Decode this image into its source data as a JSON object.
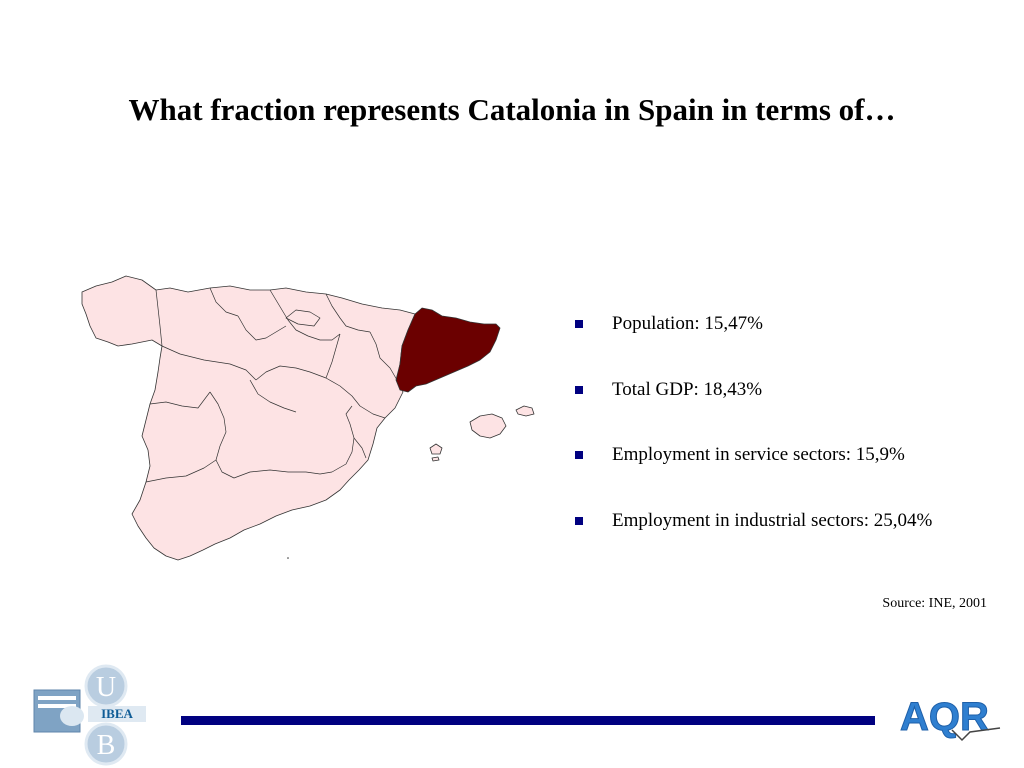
{
  "slide": {
    "title": "What fraction represents Catalonia in Spain in terms of…"
  },
  "bullets": [
    {
      "label": "Population: 15,47%"
    },
    {
      "label": "Total GDP: 18,43%"
    },
    {
      "label": "Employment in service sectors: 15,9%"
    },
    {
      "label": "Employment in industrial sectors: 25,04%"
    }
  ],
  "source": "Source: INE, 2001",
  "colors": {
    "highlight_region": "#6b0000",
    "other_regions": "#fde3e4",
    "bullet": "#000080",
    "footer_bar": "#000080",
    "aqr_logo": "#2f7fd0"
  },
  "map": {
    "highlighted_region": "Catalonia"
  },
  "logos": {
    "left": {
      "letters": [
        "U",
        "B"
      ],
      "text": "IBEA"
    },
    "right": {
      "text": "AQR"
    }
  }
}
